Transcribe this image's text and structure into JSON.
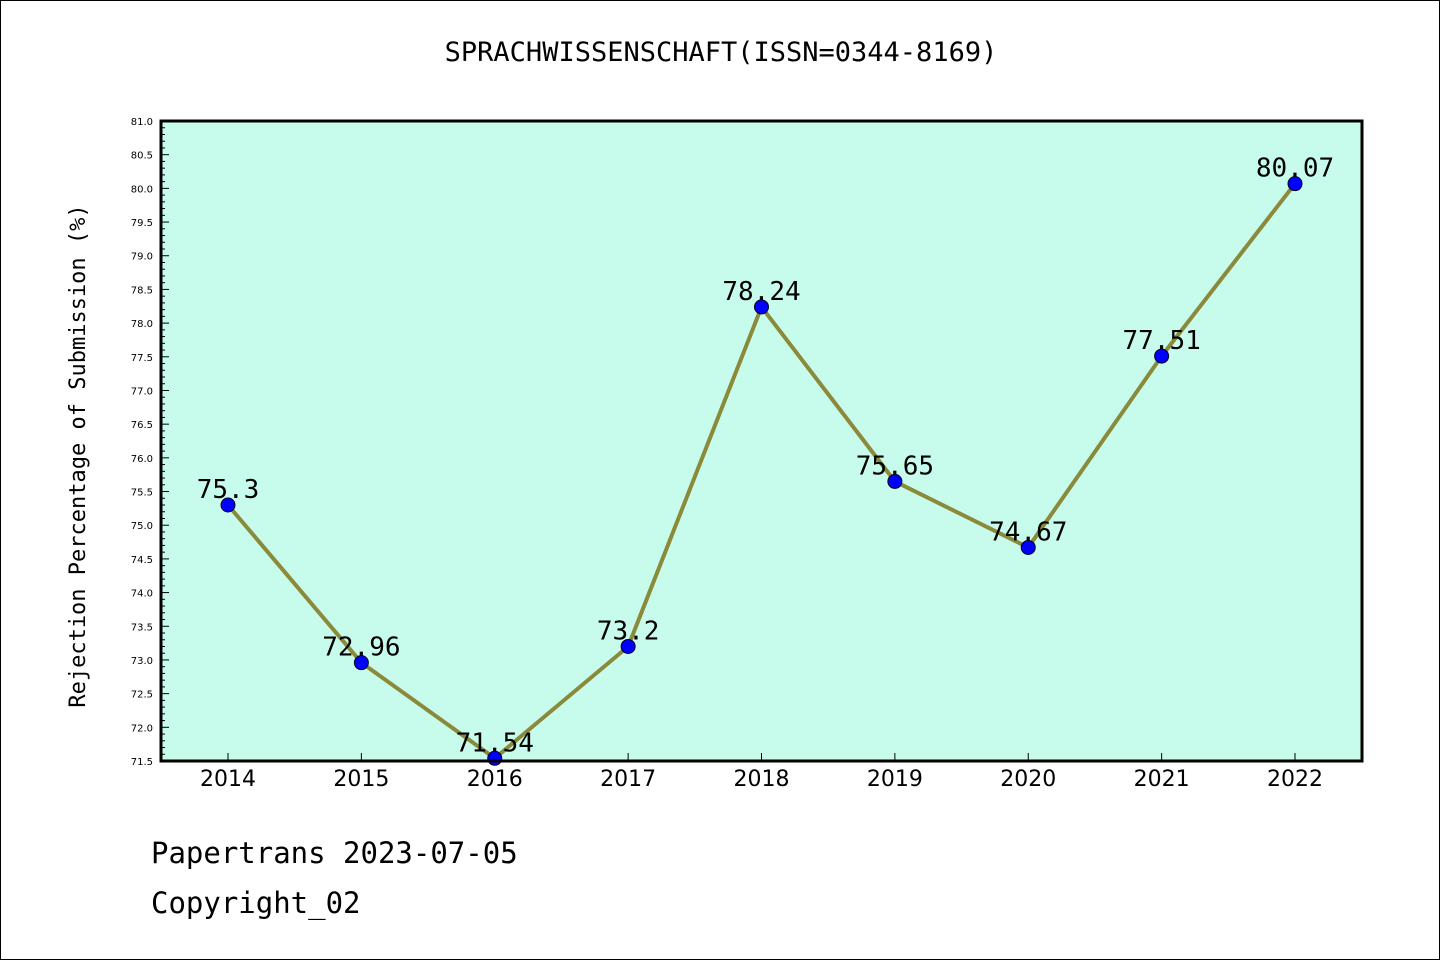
{
  "chart_data": {
    "type": "line",
    "title": "SPRACHWISSENSCHAFT(ISSN=0344-8169)",
    "xlabel": "",
    "ylabel": "Rejection Percentage of Submission (%)",
    "categories": [
      "2014",
      "2015",
      "2016",
      "2017",
      "2018",
      "2019",
      "2020",
      "2021",
      "2022"
    ],
    "series": [
      {
        "values": [
          75.3,
          72.96,
          71.54,
          73.2,
          78.24,
          75.65,
          74.67,
          77.51,
          80.07
        ],
        "labels": [
          "75.3",
          "72.96",
          "71.54",
          "73.2",
          "78.24",
          "75.65",
          "74.67",
          "77.51",
          "80.07"
        ]
      }
    ],
    "ylim": [
      71.5,
      81.0
    ],
    "yticks": [
      "71.5",
      "72.0",
      "72.5",
      "73.0",
      "73.5",
      "74.0",
      "74.5",
      "75.0",
      "75.5",
      "76.0",
      "76.5",
      "77.0",
      "77.5",
      "78.0",
      "78.5",
      "79.0",
      "79.5",
      "80.0",
      "80.5",
      "81.0"
    ],
    "grid": false,
    "colors": {
      "plot_background": "#c7fcec",
      "line": "#8a8a3a",
      "marker": "#0000ff"
    }
  },
  "footer": {
    "line1": "Papertrans 2023-07-05",
    "line2": "Copyright_02"
  }
}
